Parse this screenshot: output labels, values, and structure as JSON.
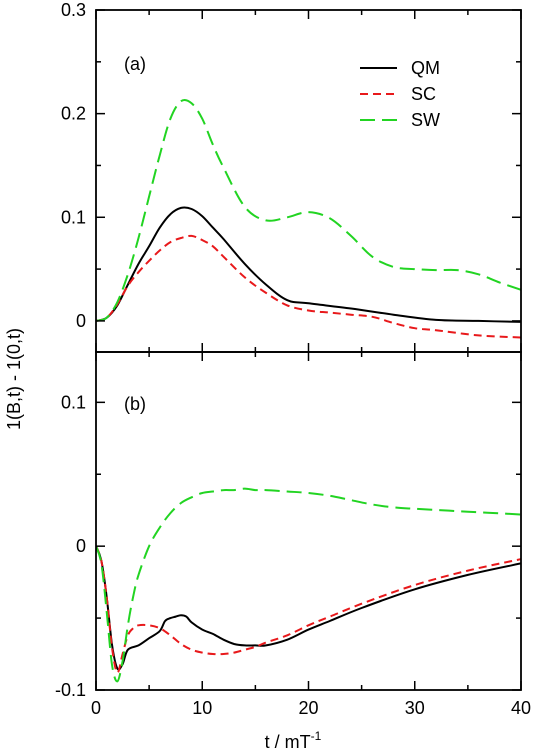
{
  "chart_data": [
    {
      "panel": "(a)",
      "type": "line",
      "xlim": [
        0,
        40
      ],
      "ylim": [
        -0.03,
        0.3
      ],
      "x_ticks": [
        0,
        10,
        20,
        30,
        40
      ],
      "y_ticks": [
        0,
        0.1,
        0.2,
        0.3
      ],
      "y_tick_labels": [
        "0",
        "0.1",
        "0.2",
        "0.3"
      ],
      "legend": {
        "placement": "top-right",
        "entries": [
          {
            "label": "QM",
            "color": "#000000",
            "dash": "solid"
          },
          {
            "label": "SC",
            "color": "#e8191b",
            "dash": "short-dash"
          },
          {
            "label": "SW",
            "color": "#22d422",
            "dash": "long-dash"
          }
        ]
      },
      "series": [
        {
          "name": "QM",
          "color": "#000000",
          "x": [
            0,
            1,
            2,
            3,
            4,
            5,
            6,
            7,
            8,
            9,
            10,
            11,
            12,
            14,
            16,
            18,
            20,
            24,
            28,
            32,
            36,
            40
          ],
          "y": [
            0,
            0.003,
            0.015,
            0.035,
            0.055,
            0.072,
            0.09,
            0.103,
            0.109,
            0.108,
            0.101,
            0.09,
            0.079,
            0.055,
            0.035,
            0.02,
            0.017,
            0.012,
            0.006,
            0.001,
            0.0,
            -0.001
          ]
        },
        {
          "name": "SC",
          "color": "#e8191b",
          "x": [
            0,
            1,
            2,
            3,
            4,
            5,
            6,
            7,
            8,
            9,
            10,
            11,
            12,
            14,
            16,
            18,
            20,
            22,
            24,
            26,
            28,
            30,
            32,
            36,
            40
          ],
          "y": [
            0,
            0.003,
            0.016,
            0.034,
            0.047,
            0.058,
            0.068,
            0.076,
            0.08,
            0.082,
            0.078,
            0.072,
            0.062,
            0.042,
            0.027,
            0.015,
            0.01,
            0.008,
            0.006,
            0.004,
            -0.002,
            -0.007,
            -0.009,
            -0.014,
            -0.016
          ]
        },
        {
          "name": "SW",
          "color": "#22d422",
          "x": [
            0,
            1,
            2,
            3,
            4,
            5,
            6,
            7,
            8,
            9,
            10,
            11,
            12,
            14,
            16,
            18,
            20,
            22,
            24,
            26,
            28,
            30,
            32,
            34,
            36,
            38,
            40
          ],
          "y": [
            0,
            0.003,
            0.018,
            0.045,
            0.08,
            0.12,
            0.16,
            0.195,
            0.212,
            0.21,
            0.195,
            0.17,
            0.148,
            0.11,
            0.097,
            0.1,
            0.105,
            0.099,
            0.082,
            0.062,
            0.052,
            0.05,
            0.049,
            0.049,
            0.045,
            0.037,
            0.03
          ]
        }
      ]
    },
    {
      "panel": "(b)",
      "type": "line",
      "xlim": [
        0,
        40
      ],
      "ylim": [
        -0.1,
        0.135
      ],
      "x_ticks": [
        0,
        10,
        20,
        30,
        40
      ],
      "x_tick_labels": [
        "0",
        "10",
        "20",
        "30",
        "40"
      ],
      "y_ticks": [
        -0.1,
        0,
        0.1
      ],
      "y_tick_labels": [
        "-0.1",
        "0",
        "0.1"
      ],
      "series": [
        {
          "name": "QM",
          "color": "#000000",
          "x": [
            0,
            0.5,
            1,
            1.5,
            2,
            2.5,
            3,
            4,
            5,
            6,
            6.5,
            7,
            7.5,
            8,
            8.5,
            9,
            10,
            11,
            12,
            13,
            14,
            15,
            16,
            18,
            20,
            22,
            25,
            30,
            35,
            40
          ],
          "y": [
            0,
            -0.01,
            -0.035,
            -0.068,
            -0.085,
            -0.082,
            -0.072,
            -0.069,
            -0.064,
            -0.059,
            -0.052,
            -0.05,
            -0.049,
            -0.048,
            -0.049,
            -0.053,
            -0.058,
            -0.061,
            -0.065,
            -0.068,
            -0.069,
            -0.069,
            -0.069,
            -0.065,
            -0.058,
            -0.052,
            -0.043,
            -0.03,
            -0.02,
            -0.012
          ]
        },
        {
          "name": "SC",
          "color": "#e8191b",
          "x": [
            0,
            0.5,
            1,
            1.5,
            2,
            2.5,
            3,
            3.5,
            4,
            5,
            6,
            7,
            8,
            9,
            10,
            11,
            12,
            13,
            14,
            15,
            16,
            18,
            20,
            22,
            25,
            30,
            35,
            40
          ],
          "y": [
            0,
            -0.01,
            -0.035,
            -0.07,
            -0.088,
            -0.075,
            -0.062,
            -0.057,
            -0.055,
            -0.055,
            -0.057,
            -0.062,
            -0.068,
            -0.072,
            -0.074,
            -0.075,
            -0.075,
            -0.074,
            -0.072,
            -0.07,
            -0.067,
            -0.062,
            -0.055,
            -0.049,
            -0.04,
            -0.027,
            -0.017,
            -0.009
          ]
        },
        {
          "name": "SW",
          "color": "#22d422",
          "x": [
            0,
            0.5,
            1,
            1.5,
            2,
            2.5,
            3,
            3.5,
            4,
            5,
            6,
            7,
            8,
            9,
            10,
            11,
            12,
            13,
            14,
            15,
            16,
            18,
            20,
            22,
            24,
            26,
            28,
            30,
            35,
            40
          ],
          "y": [
            0,
            -0.012,
            -0.045,
            -0.082,
            -0.094,
            -0.08,
            -0.055,
            -0.035,
            -0.02,
            0,
            0.013,
            0.023,
            0.03,
            0.034,
            0.037,
            0.038,
            0.039,
            0.039,
            0.04,
            0.039,
            0.039,
            0.038,
            0.037,
            0.035,
            0.032,
            0.029,
            0.027,
            0.026,
            0.024,
            0.022
          ]
        }
      ]
    }
  ],
  "figure": {
    "ylabel": "1(B,t) - 1(0,t)",
    "xlabel_base": "t / mT",
    "xlabel_sup": "-1"
  }
}
